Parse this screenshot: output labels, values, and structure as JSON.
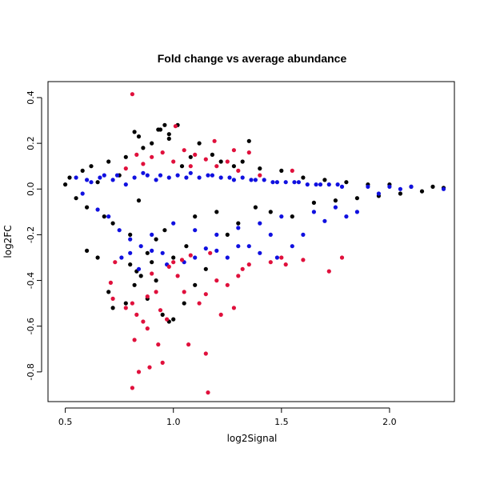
{
  "chart_data": {
    "type": "scatter",
    "title": "Fold change vs average abundance",
    "xlabel": "log2Signal",
    "ylabel": "log2FC",
    "xlim": [
      0.42,
      2.3
    ],
    "ylim": [
      -0.93,
      0.47
    ],
    "xticks": [
      0.5,
      1.0,
      1.5,
      2.0
    ],
    "xtick_labels": [
      "0.5",
      "1.0",
      "1.5",
      "2.0"
    ],
    "yticks": [
      -0.8,
      -0.6,
      -0.4,
      -0.2,
      0.0,
      0.2,
      0.4
    ],
    "ytick_labels": [
      "-0.8",
      "-0.6",
      "-0.4",
      "-0.2",
      "0.0",
      "0.2",
      "0.4"
    ],
    "grid": false,
    "legend": "none",
    "series": [
      {
        "color": "#000000",
        "points": [
          [
            0.5,
            0.02
          ],
          [
            0.52,
            0.05
          ],
          [
            0.55,
            -0.04
          ],
          [
            0.58,
            0.08
          ],
          [
            0.6,
            -0.08
          ],
          [
            0.62,
            0.1
          ],
          [
            0.65,
            0.03
          ],
          [
            0.68,
            -0.12
          ],
          [
            0.7,
            0.12
          ],
          [
            0.72,
            -0.15
          ],
          [
            0.75,
            0.06
          ],
          [
            0.78,
            0.14
          ],
          [
            0.8,
            -0.2
          ],
          [
            0.82,
            0.25
          ],
          [
            0.84,
            -0.05
          ],
          [
            0.86,
            0.18
          ],
          [
            0.88,
            -0.28
          ],
          [
            0.9,
            0.2
          ],
          [
            0.92,
            -0.22
          ],
          [
            0.94,
            0.26
          ],
          [
            0.96,
            -0.18
          ],
          [
            0.98,
            0.22
          ],
          [
            1.0,
            -0.3
          ],
          [
            1.02,
            0.28
          ],
          [
            1.04,
            0.1
          ],
          [
            1.06,
            -0.25
          ],
          [
            1.08,
            0.14
          ],
          [
            1.1,
            -0.12
          ],
          [
            1.12,
            0.2
          ],
          [
            1.15,
            -0.35
          ],
          [
            1.18,
            0.15
          ],
          [
            1.2,
            -0.1
          ],
          [
            1.22,
            0.12
          ],
          [
            1.25,
            -0.2
          ],
          [
            1.28,
            0.1
          ],
          [
            1.3,
            -0.15
          ],
          [
            1.32,
            0.12
          ],
          [
            1.35,
            0.21
          ],
          [
            1.38,
            -0.08
          ],
          [
            1.4,
            0.09
          ],
          [
            1.45,
            -0.1
          ],
          [
            1.5,
            0.08
          ],
          [
            1.55,
            -0.12
          ],
          [
            1.6,
            0.05
          ],
          [
            1.65,
            -0.06
          ],
          [
            1.7,
            0.04
          ],
          [
            1.75,
            -0.05
          ],
          [
            1.8,
            0.03
          ],
          [
            1.85,
            -0.04
          ],
          [
            1.9,
            0.02
          ],
          [
            1.95,
            -0.03
          ],
          [
            2.0,
            0.02
          ],
          [
            2.05,
            -0.02
          ],
          [
            2.1,
            0.01
          ],
          [
            2.15,
            -0.01
          ],
          [
            2.2,
            0.01
          ],
          [
            2.25,
            0.005
          ],
          [
            0.7,
            -0.45
          ],
          [
            0.72,
            -0.52
          ],
          [
            0.78,
            -0.5
          ],
          [
            0.82,
            -0.42
          ],
          [
            0.85,
            -0.38
          ],
          [
            0.88,
            -0.48
          ],
          [
            0.92,
            -0.4
          ],
          [
            0.95,
            -0.55
          ],
          [
            0.98,
            -0.58
          ],
          [
            1.0,
            -0.57
          ],
          [
            0.6,
            -0.27
          ],
          [
            0.65,
            -0.3
          ],
          [
            0.8,
            -0.33
          ],
          [
            0.83,
            -0.36
          ],
          [
            0.9,
            -0.32
          ],
          [
            1.05,
            -0.5
          ],
          [
            1.1,
            -0.42
          ],
          [
            0.96,
            0.28
          ],
          [
            0.98,
            0.24
          ],
          [
            0.84,
            0.23
          ],
          [
            0.93,
            0.26
          ]
        ]
      },
      {
        "color": "#1010e0",
        "points": [
          [
            0.55,
            0.05
          ],
          [
            0.58,
            -0.02
          ],
          [
            0.62,
            0.03
          ],
          [
            0.65,
            -0.09
          ],
          [
            0.68,
            0.06
          ],
          [
            0.7,
            -0.12
          ],
          [
            0.72,
            0.04
          ],
          [
            0.75,
            -0.18
          ],
          [
            0.78,
            0.02
          ],
          [
            0.8,
            -0.22
          ],
          [
            0.82,
            0.05
          ],
          [
            0.85,
            -0.25
          ],
          [
            0.88,
            0.06
          ],
          [
            0.9,
            -0.2
          ],
          [
            0.92,
            0.04
          ],
          [
            0.95,
            -0.28
          ],
          [
            0.98,
            0.05
          ],
          [
            1.0,
            -0.15
          ],
          [
            1.02,
            0.06
          ],
          [
            1.05,
            -0.32
          ],
          [
            1.08,
            0.07
          ],
          [
            1.1,
            -0.18
          ],
          [
            1.12,
            0.05
          ],
          [
            1.15,
            -0.26
          ],
          [
            1.18,
            0.06
          ],
          [
            1.2,
            -0.2
          ],
          [
            1.22,
            0.05
          ],
          [
            1.25,
            -0.3
          ],
          [
            1.28,
            0.04
          ],
          [
            1.3,
            -0.17
          ],
          [
            1.32,
            0.05
          ],
          [
            1.35,
            -0.25
          ],
          [
            1.38,
            0.04
          ],
          [
            1.4,
            -0.15
          ],
          [
            1.42,
            0.04
          ],
          [
            1.45,
            -0.2
          ],
          [
            1.48,
            0.03
          ],
          [
            1.5,
            -0.12
          ],
          [
            1.52,
            0.03
          ],
          [
            1.55,
            -0.25
          ],
          [
            1.58,
            0.03
          ],
          [
            1.6,
            -0.2
          ],
          [
            1.62,
            0.02
          ],
          [
            1.65,
            -0.1
          ],
          [
            1.68,
            0.02
          ],
          [
            1.7,
            -0.14
          ],
          [
            1.72,
            0.02
          ],
          [
            1.75,
            -0.08
          ],
          [
            1.78,
            0.01
          ],
          [
            1.8,
            -0.12
          ],
          [
            1.85,
            -0.1
          ],
          [
            1.9,
            0.01
          ],
          [
            1.95,
            -0.02
          ],
          [
            2.0,
            0.01
          ],
          [
            2.05,
            0.0
          ],
          [
            2.1,
            0.01
          ],
          [
            2.25,
            0.0
          ],
          [
            0.6,
            0.04
          ],
          [
            0.66,
            0.05
          ],
          [
            0.74,
            0.06
          ],
          [
            0.86,
            0.07
          ],
          [
            0.94,
            0.06
          ],
          [
            1.06,
            0.05
          ],
          [
            1.16,
            0.06
          ],
          [
            1.26,
            0.05
          ],
          [
            1.36,
            0.04
          ],
          [
            1.46,
            0.03
          ],
          [
            1.56,
            0.03
          ],
          [
            1.66,
            0.02
          ],
          [
            1.76,
            0.02
          ],
          [
            0.76,
            -0.3
          ],
          [
            0.8,
            -0.28
          ],
          [
            0.84,
            -0.35
          ],
          [
            0.9,
            -0.27
          ],
          [
            0.97,
            -0.33
          ],
          [
            1.1,
            -0.3
          ],
          [
            1.2,
            -0.27
          ],
          [
            1.3,
            -0.25
          ],
          [
            1.4,
            -0.28
          ],
          [
            1.48,
            -0.3
          ]
        ]
      },
      {
        "color": "#e0103c",
        "points": [
          [
            0.81,
            0.415
          ],
          [
            1.01,
            0.275
          ],
          [
            1.19,
            0.21
          ],
          [
            1.28,
            0.17
          ],
          [
            1.35,
            0.16
          ],
          [
            0.83,
            0.15
          ],
          [
            0.9,
            0.14
          ],
          [
            0.95,
            0.16
          ],
          [
            1.05,
            0.17
          ],
          [
            1.1,
            0.15
          ],
          [
            1.15,
            0.13
          ],
          [
            1.2,
            0.1
          ],
          [
            1.25,
            0.12
          ],
          [
            1.3,
            0.08
          ],
          [
            1.55,
            0.08
          ],
          [
            0.78,
            0.09
          ],
          [
            0.86,
            0.11
          ],
          [
            1.0,
            0.12
          ],
          [
            1.08,
            0.1
          ],
          [
            1.4,
            0.06
          ],
          [
            0.81,
            -0.87
          ],
          [
            0.84,
            -0.8
          ],
          [
            0.82,
            -0.66
          ],
          [
            0.89,
            -0.78
          ],
          [
            0.95,
            -0.76
          ],
          [
            1.16,
            -0.89
          ],
          [
            1.15,
            -0.72
          ],
          [
            1.07,
            -0.68
          ],
          [
            0.93,
            -0.68
          ],
          [
            0.88,
            -0.61
          ],
          [
            0.71,
            -0.41
          ],
          [
            0.72,
            -0.48
          ],
          [
            0.78,
            -0.52
          ],
          [
            0.81,
            -0.5
          ],
          [
            0.83,
            -0.55
          ],
          [
            0.86,
            -0.58
          ],
          [
            0.88,
            -0.47
          ],
          [
            0.9,
            -0.37
          ],
          [
            0.92,
            -0.45
          ],
          [
            0.94,
            -0.53
          ],
          [
            0.97,
            -0.57
          ],
          [
            0.98,
            -0.34
          ],
          [
            1.0,
            -0.32
          ],
          [
            1.02,
            -0.38
          ],
          [
            1.04,
            -0.31
          ],
          [
            1.05,
            -0.45
          ],
          [
            1.08,
            -0.29
          ],
          [
            1.12,
            -0.5
          ],
          [
            1.15,
            -0.46
          ],
          [
            1.17,
            -0.28
          ],
          [
            1.2,
            -0.4
          ],
          [
            1.22,
            -0.55
          ],
          [
            1.25,
            -0.42
          ],
          [
            1.28,
            -0.52
          ],
          [
            1.3,
            -0.38
          ],
          [
            1.32,
            -0.35
          ],
          [
            1.35,
            -0.33
          ],
          [
            1.45,
            -0.32
          ],
          [
            1.5,
            -0.3
          ],
          [
            1.6,
            -0.31
          ],
          [
            1.72,
            -0.36
          ],
          [
            1.78,
            -0.3
          ],
          [
            1.52,
            -0.33
          ],
          [
            0.73,
            -0.32
          ]
        ]
      }
    ]
  }
}
